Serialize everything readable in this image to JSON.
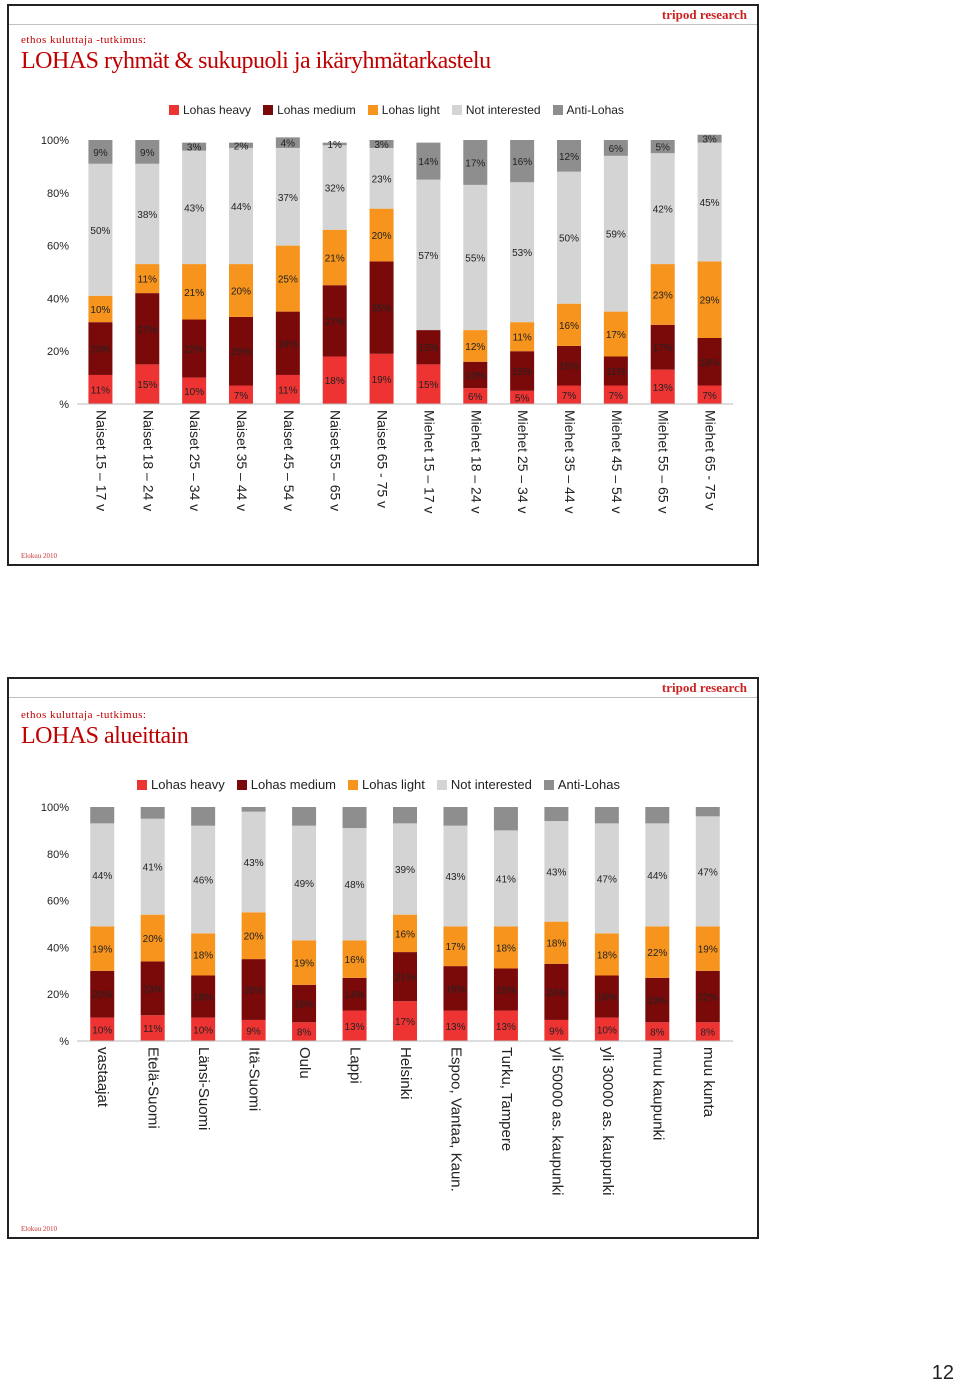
{
  "brand": "tripod research",
  "footer": "Elokuu 2010",
  "page_number": "12",
  "legend_names": [
    "Lohas heavy",
    "Lohas medium",
    "Lohas light",
    "Not interested",
    "Anti-Lohas"
  ],
  "colors": [
    "#ee3333",
    "#7a0a0a",
    "#f7941d",
    "#d4d4d4",
    "#8e8e8e"
  ],
  "slide1": {
    "subtitle": "ethos kuluttaja -tutkimus:",
    "title": "LOHAS ryhmät & sukupuoli ja ikäryhmätarkastelu"
  },
  "slide2": {
    "subtitle": "ethos kuluttaja -tutkimus:",
    "title": "LOHAS alueittain"
  },
  "chart_data": [
    {
      "type": "bar",
      "stacked": true,
      "yticks": [
        "100%",
        "80%",
        "60%",
        "40%",
        "20%",
        "%"
      ],
      "categories": [
        "Naiset 15 – 17 v",
        "Naiset 18 – 24 v",
        "Naiset 25 – 34 v",
        "Naiset 35 – 44 v",
        "Naiset 45 – 54 v",
        "Naiset 55 – 65 v",
        "Naiset 65 - 75 v",
        "Miehet 15 – 17 v",
        "Miehet 18 – 24 v",
        "Miehet 25 – 34 v",
        "Miehet 35 – 44 v",
        "Miehet 45 – 54 v",
        "Miehet 55 – 65 v",
        "Miehet 65 - 75 v"
      ],
      "series": [
        {
          "name": "Lohas heavy",
          "values": [
            11,
            15,
            10,
            7,
            11,
            18,
            19,
            15,
            6,
            5,
            7,
            7,
            13,
            7
          ]
        },
        {
          "name": "Lohas medium",
          "values": [
            20,
            27,
            22,
            26,
            24,
            27,
            35,
            13,
            10,
            15,
            15,
            11,
            17,
            18
          ]
        },
        {
          "name": "Lohas light",
          "values": [
            10,
            11,
            21,
            20,
            25,
            21,
            20,
            0,
            12,
            11,
            16,
            17,
            23,
            29
          ]
        },
        {
          "name": "Not interested",
          "values": [
            50,
            38,
            43,
            44,
            37,
            32,
            23,
            57,
            55,
            53,
            50,
            59,
            42,
            45
          ]
        },
        {
          "name": "Anti-Lohas",
          "values": [
            9,
            9,
            3,
            2,
            4,
            1,
            3,
            14,
            17,
            16,
            12,
            6,
            5,
            3
          ]
        }
      ],
      "ylim": [
        0,
        100
      ]
    },
    {
      "type": "bar",
      "stacked": true,
      "yticks": [
        "100%",
        "80%",
        "60%",
        "40%",
        "20%",
        "%"
      ],
      "categories": [
        "vastaajat",
        "Etelä-Suomi",
        "Länsi-Suomi",
        "Itä-Suomi",
        "Oulu",
        "Lappi",
        "Helsinki",
        "Espoo, Vantaa, Kaun.",
        "Turku, Tampere",
        "yli 50000 as. kaupunki",
        "yli 30000 as. kaupunki",
        "muu kaupunki",
        "muu kunta"
      ],
      "series": [
        {
          "name": "Lohas heavy",
          "values": [
            10,
            11,
            10,
            9,
            8,
            13,
            17,
            13,
            13,
            9,
            10,
            8,
            8
          ]
        },
        {
          "name": "Lohas medium",
          "values": [
            20,
            23,
            18,
            26,
            16,
            14,
            21,
            19,
            18,
            24,
            18,
            19,
            22
          ]
        },
        {
          "name": "Lohas light",
          "values": [
            19,
            20,
            18,
            20,
            19,
            16,
            16,
            17,
            18,
            18,
            18,
            22,
            19
          ]
        },
        {
          "name": "Not interested",
          "values": [
            44,
            41,
            46,
            43,
            49,
            48,
            39,
            43,
            41,
            43,
            47,
            44,
            47
          ]
        },
        {
          "name": "Anti-Lohas",
          "values": [
            7,
            5,
            8,
            2,
            8,
            9,
            7,
            8,
            10,
            6,
            7,
            7,
            4
          ]
        }
      ],
      "ylim": [
        0,
        100
      ],
      "hidden_labels": [
        "Anti-Lohas"
      ]
    }
  ]
}
